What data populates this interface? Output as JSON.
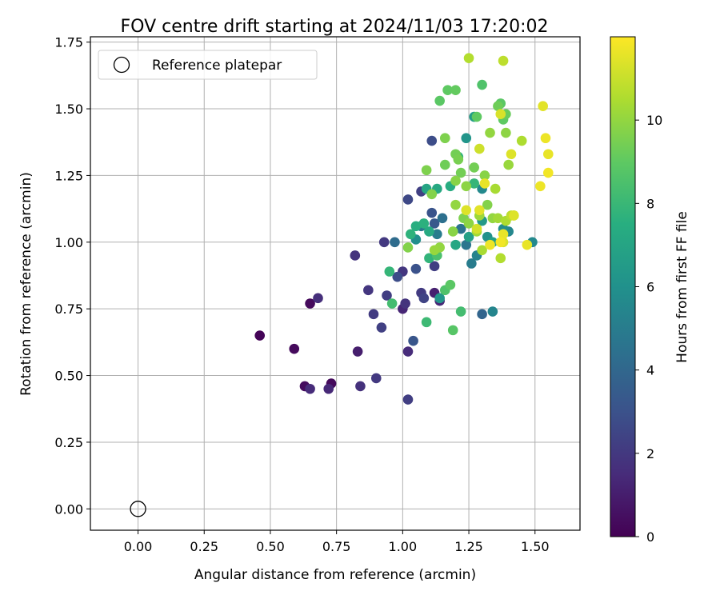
{
  "chart_data": {
    "type": "scatter",
    "title": "FOV centre drift starting at 2024/11/03 17:20:02",
    "xlabel": "Angular distance from reference (arcmin)",
    "ylabel": "Rotation from reference (arcmin)",
    "xlim": [
      -0.18,
      1.67
    ],
    "ylim": [
      -0.08,
      1.77
    ],
    "xticks": [
      "0.00",
      "0.25",
      "0.50",
      "0.75",
      "1.00",
      "1.25",
      "1.50"
    ],
    "xtick_values": [
      0,
      0.25,
      0.5,
      0.75,
      1.0,
      1.25,
      1.5
    ],
    "yticks": [
      "0.00",
      "0.25",
      "0.50",
      "0.75",
      "1.00",
      "1.25",
      "1.50",
      "1.75"
    ],
    "ytick_values": [
      0,
      0.25,
      0.5,
      0.75,
      1.0,
      1.25,
      1.5,
      1.75
    ],
    "grid": true,
    "legend": {
      "position": "top-left",
      "entries": [
        "Reference platepar"
      ]
    },
    "reference_point": {
      "x": 0.0,
      "y": 0.0
    },
    "colorbar": {
      "label": "Hours from first FF file",
      "colormap": "viridis",
      "range": [
        0,
        12
      ],
      "ticks": [
        "0",
        "2",
        "4",
        "6",
        "8",
        "10"
      ],
      "tick_values": [
        0,
        2,
        4,
        6,
        8,
        10
      ]
    },
    "series": [
      {
        "marker": "filled-circle",
        "points": [
          [
            0.46,
            0.65,
            0.1
          ],
          [
            0.59,
            0.6,
            0.3
          ],
          [
            0.63,
            0.46,
            0.4
          ],
          [
            0.65,
            0.77,
            0.3
          ],
          [
            0.73,
            0.47,
            0.3
          ],
          [
            0.65,
            0.45,
            1.5
          ],
          [
            0.68,
            0.79,
            1.6
          ],
          [
            0.72,
            0.45,
            1.4
          ],
          [
            0.84,
            0.46,
            1.7
          ],
          [
            0.83,
            0.59,
            1.0
          ],
          [
            0.82,
            0.95,
            1.8
          ],
          [
            0.87,
            0.82,
            1.9
          ],
          [
            0.9,
            0.49,
            2.0
          ],
          [
            0.89,
            0.73,
            2.1
          ],
          [
            0.94,
            0.8,
            2.2
          ],
          [
            0.92,
            0.68,
            2.3
          ],
          [
            0.93,
            1.0,
            2.0
          ],
          [
            1.0,
            0.75,
            1.3
          ],
          [
            1.01,
            0.77,
            1.8
          ],
          [
            1.02,
            0.59,
            1.5
          ],
          [
            1.02,
            0.41,
            2.2
          ],
          [
            1.0,
            0.89,
            1.9
          ],
          [
            0.98,
            0.87,
            2.8
          ],
          [
            1.04,
            0.63,
            3.2
          ],
          [
            1.05,
            0.9,
            3.0
          ],
          [
            1.07,
            0.81,
            2.1
          ],
          [
            1.08,
            0.79,
            2.4
          ],
          [
            1.12,
            0.81,
            1.1
          ],
          [
            1.12,
            0.91,
            2.2
          ],
          [
            1.14,
            0.78,
            1.4
          ],
          [
            1.02,
            1.16,
            2.6
          ],
          [
            1.07,
            1.19,
            2.3
          ],
          [
            1.11,
            1.38,
            2.8
          ],
          [
            1.11,
            1.11,
            3.1
          ],
          [
            1.12,
            1.07,
            3.3
          ],
          [
            1.3,
            0.73,
            3.9
          ],
          [
            1.28,
            0.95,
            5.3
          ],
          [
            1.26,
            0.92,
            5.0
          ],
          [
            1.22,
            1.05,
            4.5
          ],
          [
            1.24,
            0.99,
            4.7
          ],
          [
            1.15,
            1.09,
            4.4
          ],
          [
            1.07,
            1.06,
            4.8
          ],
          [
            1.13,
            1.03,
            5.0
          ],
          [
            0.97,
            1.0,
            4.2
          ],
          [
            1.34,
            0.74,
            5.4
          ],
          [
            1.49,
            1.0,
            5.6
          ],
          [
            1.38,
            1.05,
            5.8
          ],
          [
            1.4,
            1.04,
            5.5
          ],
          [
            1.32,
            1.02,
            6.0
          ],
          [
            1.3,
            1.2,
            5.6
          ],
          [
            1.24,
            1.39,
            6.2
          ],
          [
            1.27,
            1.47,
            6.6
          ],
          [
            1.3,
            1.08,
            6.4
          ],
          [
            1.34,
            1.0,
            6.7
          ],
          [
            1.05,
            1.01,
            5.9
          ],
          [
            1.09,
            1.2,
            7.0
          ],
          [
            1.13,
            1.2,
            7.2
          ],
          [
            1.2,
            0.99,
            7.1
          ],
          [
            1.25,
            1.02,
            6.8
          ],
          [
            1.14,
            0.79,
            6.3
          ],
          [
            1.05,
            1.06,
            7.5
          ],
          [
            1.08,
            1.07,
            7.6
          ],
          [
            1.1,
            1.04,
            7.3
          ],
          [
            1.18,
            1.21,
            7.4
          ],
          [
            1.21,
            1.32,
            7.8
          ],
          [
            1.27,
            1.22,
            7.9
          ],
          [
            1.03,
            1.03,
            7.7
          ],
          [
            0.95,
            0.89,
            7.9
          ],
          [
            0.96,
            0.77,
            8.3
          ],
          [
            1.09,
            0.7,
            8.1
          ],
          [
            1.1,
            0.94,
            7.8
          ],
          [
            1.13,
            0.95,
            8.5
          ],
          [
            1.16,
            0.82,
            8.6
          ],
          [
            1.18,
            0.84,
            8.9
          ],
          [
            1.22,
            0.74,
            8.3
          ],
          [
            1.19,
            0.67,
            8.8
          ],
          [
            1.14,
            1.53,
            8.9
          ],
          [
            1.17,
            1.57,
            9.0
          ],
          [
            1.2,
            1.57,
            9.1
          ],
          [
            1.3,
            1.59,
            8.6
          ],
          [
            1.28,
            1.47,
            9.0
          ],
          [
            1.37,
            1.52,
            8.9
          ],
          [
            1.39,
            1.48,
            9.2
          ],
          [
            1.36,
            1.51,
            9.3
          ],
          [
            1.38,
            1.46,
            9.0
          ],
          [
            1.21,
            1.31,
            9.5
          ],
          [
            1.2,
            1.33,
            9.4
          ],
          [
            1.16,
            1.39,
            9.6
          ],
          [
            1.22,
            1.26,
            9.4
          ],
          [
            1.16,
            1.29,
            9.3
          ],
          [
            1.09,
            1.27,
            9.6
          ],
          [
            1.11,
            1.18,
            9.7
          ],
          [
            1.2,
            1.23,
            9.8
          ],
          [
            1.24,
            1.21,
            9.9
          ],
          [
            1.27,
            1.28,
            9.4
          ],
          [
            1.33,
            1.41,
            10.0
          ],
          [
            1.39,
            1.41,
            9.9
          ],
          [
            1.4,
            1.29,
            10.1
          ],
          [
            1.35,
            1.2,
            10.4
          ],
          [
            1.34,
            1.09,
            10.0
          ],
          [
            1.31,
            1.25,
            9.8
          ],
          [
            1.29,
            1.1,
            10.2
          ],
          [
            1.3,
            0.97,
            10.4
          ],
          [
            1.19,
            1.04,
            9.8
          ],
          [
            1.2,
            1.14,
            10.0
          ],
          [
            1.23,
            1.09,
            9.6
          ],
          [
            1.25,
            1.07,
            9.9
          ],
          [
            1.28,
            1.04,
            10.3
          ],
          [
            1.32,
            1.14,
            9.7
          ],
          [
            1.39,
            1.08,
            10.5
          ],
          [
            1.41,
            1.1,
            10.8
          ],
          [
            1.42,
            1.1,
            10.6
          ],
          [
            1.45,
            1.38,
            10.5
          ],
          [
            1.37,
            0.94,
            10.6
          ],
          [
            1.36,
            1.09,
            10.3
          ],
          [
            1.12,
            0.97,
            10.1
          ],
          [
            1.14,
            0.98,
            10.0
          ],
          [
            1.02,
            0.98,
            9.7
          ],
          [
            1.25,
            1.69,
            10.6
          ],
          [
            1.38,
            1.68,
            10.8
          ],
          [
            1.37,
            1.48,
            11.3
          ],
          [
            1.41,
            1.33,
            11.4
          ],
          [
            1.29,
            1.35,
            11.1
          ],
          [
            1.31,
            1.22,
            11.6
          ],
          [
            1.24,
            1.12,
            11.4
          ],
          [
            1.28,
            1.05,
            11.2
          ],
          [
            1.29,
            1.12,
            11.5
          ],
          [
            1.33,
            0.99,
            11.7
          ],
          [
            1.37,
            1.0,
            11.8
          ],
          [
            1.38,
            1.0,
            11.3
          ],
          [
            1.47,
            0.99,
            11.6
          ],
          [
            1.52,
            1.21,
            11.7
          ],
          [
            1.53,
            1.51,
            11.5
          ],
          [
            1.54,
            1.39,
            11.7
          ],
          [
            1.55,
            1.33,
            11.6
          ],
          [
            1.55,
            1.26,
            11.8
          ],
          [
            1.42,
            1.1,
            11.4
          ],
          [
            1.38,
            1.03,
            11.6
          ]
        ]
      }
    ]
  }
}
